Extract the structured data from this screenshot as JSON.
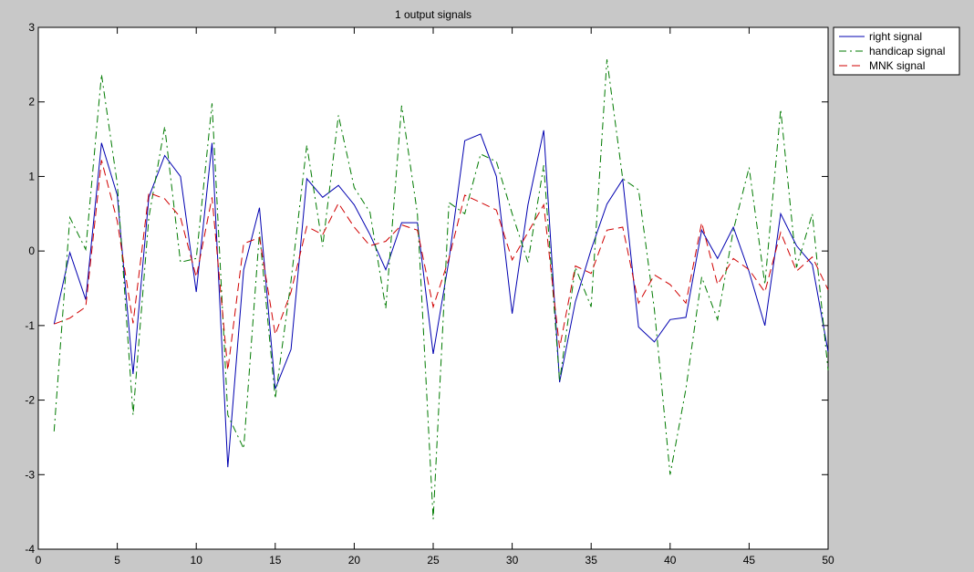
{
  "chart_data": {
    "type": "line",
    "title": "1 output signals",
    "xlabel": "",
    "ylabel": "",
    "xlim": [
      0,
      50
    ],
    "ylim": [
      -4,
      3
    ],
    "x_ticks": [
      "0",
      "5",
      "10",
      "15",
      "20",
      "25",
      "30",
      "35",
      "40",
      "45",
      "50"
    ],
    "y_ticks": [
      "3",
      "2",
      "1",
      "0",
      "-1",
      "-2",
      "-3",
      "-4"
    ],
    "grid": false,
    "legend_position": "outside-top-right",
    "x": [
      1,
      2,
      3,
      4,
      5,
      6,
      7,
      8,
      9,
      10,
      11,
      12,
      13,
      14,
      15,
      16,
      17,
      18,
      19,
      20,
      21,
      22,
      23,
      24,
      25,
      26,
      27,
      28,
      29,
      30,
      31,
      32,
      33,
      34,
      35,
      36,
      37,
      38,
      39,
      40,
      41,
      42,
      43,
      44,
      45,
      46,
      47,
      48,
      49,
      50
    ],
    "series": [
      {
        "name": "right signal",
        "color": "#0000b0",
        "style": "solid",
        "values": [
          -0.98,
          -0.02,
          -0.65,
          1.45,
          0.75,
          -1.65,
          0.72,
          1.28,
          1.0,
          -0.55,
          1.45,
          -2.9,
          -0.25,
          0.58,
          -1.85,
          -1.32,
          0.97,
          0.72,
          0.88,
          0.62,
          0.22,
          -0.25,
          0.38,
          0.38,
          -1.38,
          -0.12,
          1.48,
          1.57,
          1.0,
          -0.84,
          0.62,
          1.62,
          -1.76,
          -0.68,
          0.02,
          0.63,
          0.96,
          -1.02,
          -1.22,
          -0.92,
          -0.89,
          0.28,
          -0.1,
          0.32,
          -0.28,
          -1.0,
          0.5,
          0.07,
          -0.18,
          -1.35
        ]
      },
      {
        "name": "handicap signal",
        "color": "#007a00",
        "style": "dashdot",
        "values": [
          -2.42,
          0.45,
          0.02,
          2.37,
          0.9,
          -2.2,
          0.45,
          1.67,
          -0.15,
          -0.1,
          1.98,
          -2.2,
          -2.65,
          0.25,
          -1.98,
          -0.4,
          1.42,
          0.06,
          1.82,
          0.85,
          0.52,
          -0.77,
          1.95,
          0.5,
          -3.6,
          0.65,
          0.5,
          1.3,
          1.2,
          0.5,
          -0.15,
          1.15,
          -1.75,
          -0.22,
          -0.75,
          2.57,
          0.97,
          0.82,
          -0.78,
          -3.0,
          -1.85,
          -0.35,
          -0.92,
          0.28,
          1.12,
          -0.45,
          1.9,
          -0.22,
          0.5,
          -1.6
        ]
      },
      {
        "name": "MNK signal",
        "color": "#d00000",
        "style": "dashed",
        "values": [
          -0.98,
          -0.9,
          -0.75,
          1.22,
          0.4,
          -0.97,
          0.78,
          0.7,
          0.45,
          -0.35,
          0.72,
          -1.6,
          0.1,
          0.18,
          -1.12,
          -0.55,
          0.33,
          0.22,
          0.64,
          0.32,
          0.07,
          0.13,
          0.35,
          0.28,
          -0.75,
          -0.1,
          0.75,
          0.65,
          0.55,
          -0.12,
          0.25,
          0.62,
          -1.3,
          -0.2,
          -0.3,
          0.28,
          0.32,
          -0.7,
          -0.32,
          -0.45,
          -0.7,
          0.38,
          -0.45,
          -0.1,
          -0.25,
          -0.55,
          0.25,
          -0.27,
          -0.08,
          -0.52
        ]
      }
    ]
  }
}
